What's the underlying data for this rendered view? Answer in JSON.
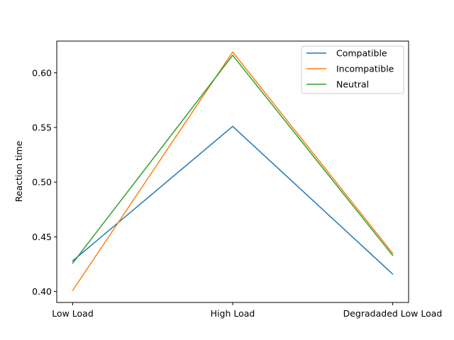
{
  "chart_data": {
    "type": "line",
    "categories": [
      "Low Load",
      "High Load",
      "Degradaded Low Load"
    ],
    "series": [
      {
        "name": "Compatible",
        "values": [
          0.428,
          0.551,
          0.416
        ],
        "color": "#1f77b4"
      },
      {
        "name": "Incompatible",
        "values": [
          0.401,
          0.619,
          0.435
        ],
        "color": "#ff7f0e"
      },
      {
        "name": "Neutral",
        "values": [
          0.426,
          0.616,
          0.433
        ],
        "color": "#2ca02c"
      }
    ],
    "title": "",
    "xlabel": "",
    "ylabel": "Reaction time",
    "ylim": [
      0.39,
      0.629
    ],
    "yticks": [
      "0.40",
      "0.45",
      "0.50",
      "0.55",
      "0.60"
    ],
    "grid": false,
    "legend": "top-right"
  }
}
